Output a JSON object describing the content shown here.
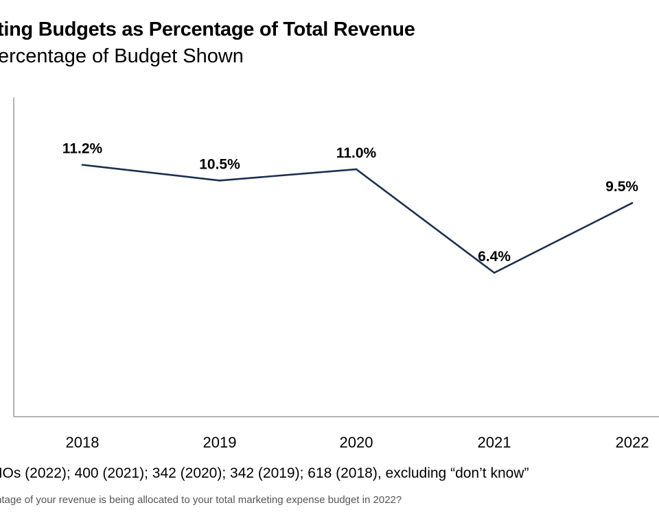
{
  "colors": {
    "line": "#1c2f4f",
    "axis": "#9a9a9a",
    "text": "#000000",
    "note": "#555555"
  },
  "chart_data": {
    "type": "line",
    "title": "ting Budgets as Percentage of Total Revenue",
    "subtitle": "ercentage of Budget Shown",
    "categories": [
      "2018",
      "2019",
      "2020",
      "2021",
      "2022"
    ],
    "series": [
      {
        "values": [
          11.2,
          10.5,
          11.0,
          6.4,
          9.5
        ],
        "labels": [
          "11.2%",
          "10.5%",
          "11.0%",
          "6.4%",
          "9.5%"
        ]
      }
    ],
    "ylim": [
      0,
      14.2
    ],
    "grid": false,
    "legend": "none"
  },
  "footnotes": {
    "source": "MOs (2022); 400 (2021); 342 (2020); 342 (2019); 618 (2018), excluding “don’t know”",
    "question": "ntage of your revenue is being allocated to your total marketing expense budget in 2022?"
  }
}
